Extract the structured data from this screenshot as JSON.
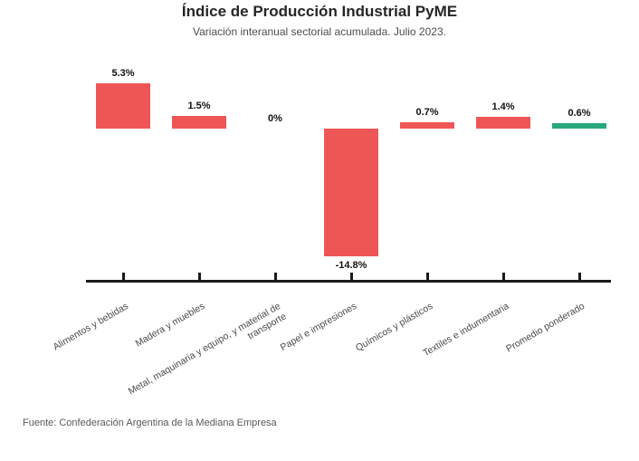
{
  "chart": {
    "title": "Índice de Producción Industrial PyME",
    "subtitle": "Variación interanual sectorial acumulada. Julio 2023.",
    "source": "Fuente: Confederación Argentina de la Mediana Empresa"
  },
  "chart_data": {
    "type": "bar",
    "title": "Índice de Producción Industrial PyME",
    "subtitle": "Variación interanual sectorial acumulada. Julio 2023.",
    "categories": [
      "Alimentos y bebidas",
      "Madera y muebles",
      "Metal, maquinaria y equipo, y material de\ntransporte",
      "Papel e impresiones",
      "Químicos y plásticos",
      "Textiles e indumentaria",
      "Promedio ponderado"
    ],
    "values": [
      5.3,
      1.5,
      0,
      -14.8,
      0.7,
      1.4,
      0.6
    ],
    "value_labels": [
      "5.3%",
      "1.5%",
      "0%",
      "-14.8%",
      "0.7%",
      "1.4%",
      "0.6%"
    ],
    "bar_colors": [
      "#ee5656",
      "#ee5656",
      "#ee5656",
      "#ee5656",
      "#ee5656",
      "#ee5656",
      "#28a87d"
    ],
    "colors": {
      "sector_bars": "#ee5656",
      "weighted_average_bar": "#28a87d",
      "axis": "#1a1a1a",
      "value_label_text": "#111111",
      "category_label_text": "#4a4a4a"
    },
    "xlabel": "",
    "ylabel": "",
    "unit": "%",
    "ylim": [
      -16,
      6
    ],
    "grid": false,
    "legend_position": "none",
    "baseline": 0,
    "source": "Fuente: Confederación Argentina de la Mediana Empresa"
  }
}
